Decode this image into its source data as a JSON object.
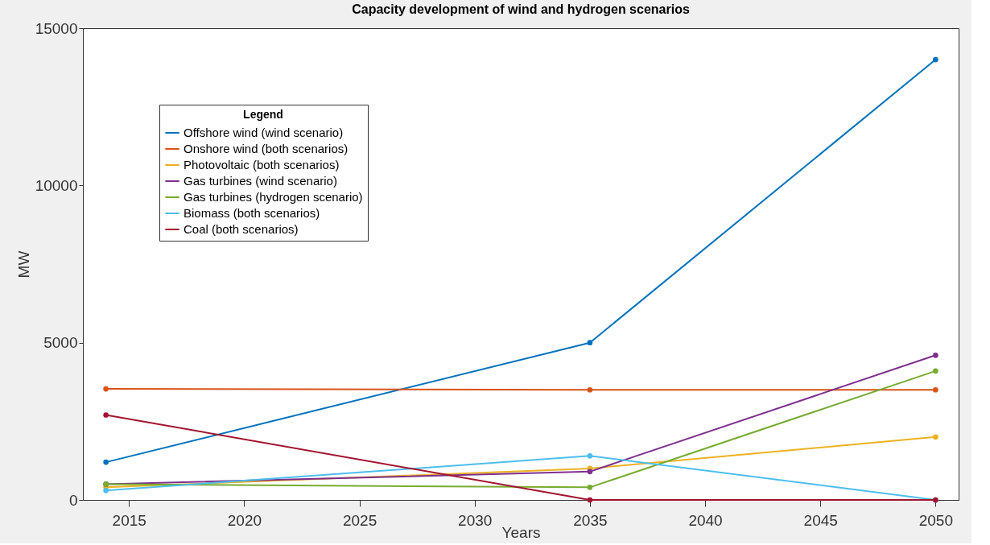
{
  "chart_data": {
    "type": "line",
    "title": "Capacity development of wind and hydrogen scenarios",
    "xlabel": "Years",
    "ylabel": "MW",
    "legend_title": "Legend",
    "x": [
      2014,
      2035,
      2050
    ],
    "series": [
      {
        "name": "Offshore wind (wind scenario)",
        "color": "#0072bd",
        "values": [
          1200,
          5000,
          14000
        ]
      },
      {
        "name": "Onshore wind (both scenarios)",
        "color": "#d95319",
        "values": [
          3530,
          3500,
          3500
        ]
      },
      {
        "name": "Photovoltaic (both scenarios)",
        "color": "#edb120",
        "values": [
          400,
          1000,
          2000
        ]
      },
      {
        "name": "Gas turbines (wind scenario)",
        "color": "#7e2f8e",
        "values": [
          500,
          900,
          4600
        ]
      },
      {
        "name": "Gas turbines (hydrogen scenario)",
        "color": "#77ac30",
        "values": [
          500,
          400,
          4100
        ]
      },
      {
        "name": "Biomass (both scenarios)",
        "color": "#4dbeee",
        "values": [
          300,
          1400,
          0
        ]
      },
      {
        "name": "Coal (both scenarios)",
        "color": "#a2142f",
        "values": [
          2700,
          0,
          0
        ]
      }
    ],
    "xlim": [
      2013,
      2051
    ],
    "xticks": [
      2015,
      2020,
      2025,
      2030,
      2035,
      2040,
      2045,
      2050
    ],
    "ylim": [
      0,
      15000
    ],
    "yticks": [
      0,
      5000,
      10000,
      15000
    ],
    "grid": false,
    "legend": "top left",
    "marker": "circle",
    "line_style": "solid"
  }
}
